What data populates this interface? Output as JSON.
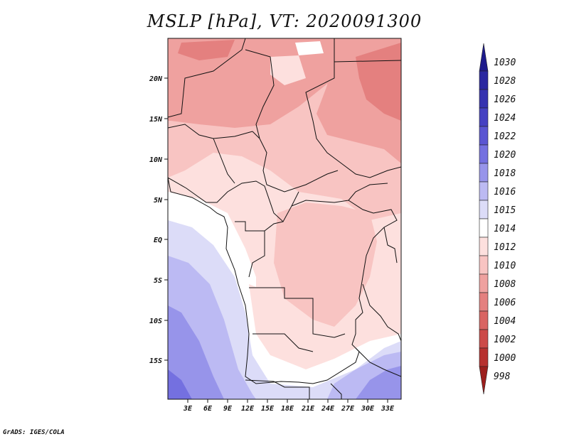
{
  "title": "MSLP [hPa], VT: 2020091300",
  "footer": "GrADS: IGES/COLA",
  "map": {
    "lat_labels": [
      "20N",
      "15N",
      "10N",
      "5N",
      "EQ",
      "5S",
      "10S",
      "15S"
    ],
    "lon_labels": [
      "3E",
      "6E",
      "9E",
      "12E",
      "15E",
      "18E",
      "21E",
      "24E",
      "27E",
      "30E",
      "33E"
    ]
  },
  "colorbar": {
    "levels": [
      {
        "label": "1030",
        "color": "#1e1b8c"
      },
      {
        "label": "1028",
        "color": "#2a27a0"
      },
      {
        "label": "1026",
        "color": "#3632b0"
      },
      {
        "label": "1024",
        "color": "#4541c2"
      },
      {
        "label": "1022",
        "color": "#5a55d2"
      },
      {
        "label": "1020",
        "color": "#7470e0"
      },
      {
        "label": "1018",
        "color": "#9794ea"
      },
      {
        "label": "1016",
        "color": "#bcbaf3"
      },
      {
        "label": "1015",
        "color": "#dcdcf8"
      },
      {
        "label": "1014",
        "color": "#ffffff"
      },
      {
        "label": "1012",
        "color": "#fde0de"
      },
      {
        "label": "1010",
        "color": "#f8c4c2"
      },
      {
        "label": "1008",
        "color": "#efa19f"
      },
      {
        "label": "1006",
        "color": "#e4807f"
      },
      {
        "label": "1004",
        "color": "#d96462"
      },
      {
        "label": "1002",
        "color": "#cc4a48"
      },
      {
        "label": "1000",
        "color": "#b7312f"
      },
      {
        "label": "998",
        "color": "#9c1f1d"
      }
    ]
  }
}
